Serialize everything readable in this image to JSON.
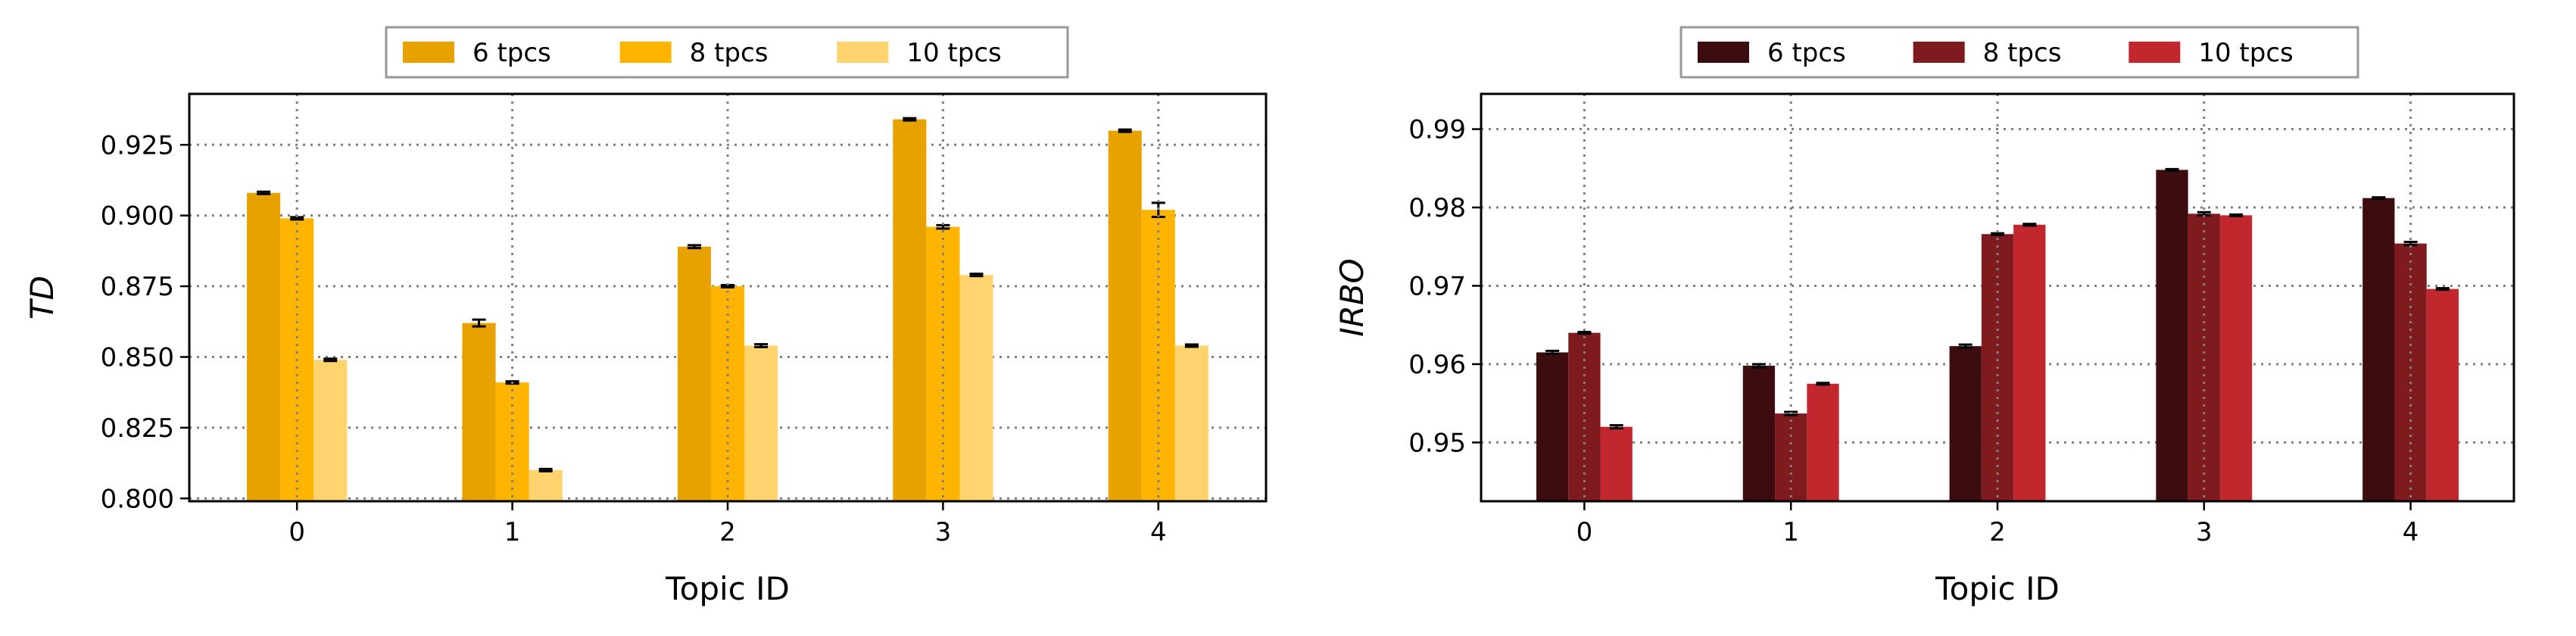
{
  "chart_data": [
    {
      "type": "bar",
      "xlabel": "Topic ID",
      "ylabel": "TD",
      "categories": [
        "0",
        "1",
        "2",
        "3",
        "4"
      ],
      "ylim": [
        0.799,
        0.943
      ],
      "yticks": [
        "0.800",
        "0.825",
        "0.850",
        "0.875",
        "0.900",
        "0.925"
      ],
      "grid": true,
      "legend_position": "top-center",
      "error_bars": true,
      "series": [
        {
          "name": "6 tpcs",
          "color": "#E8A200",
          "values": [
            0.908,
            0.862,
            0.889,
            0.934,
            0.93
          ],
          "errors": [
            0.0004,
            0.0012,
            0.0005,
            0.0004,
            0.0004
          ]
        },
        {
          "name": "8 tpcs",
          "color": "#FFB400",
          "values": [
            0.899,
            0.841,
            0.875,
            0.896,
            0.902
          ],
          "errors": [
            0.0004,
            0.0004,
            0.0004,
            0.0006,
            0.0025
          ]
        },
        {
          "name": "10 tpcs",
          "color": "#FFD36E",
          "values": [
            0.849,
            0.81,
            0.854,
            0.879,
            0.854
          ],
          "errors": [
            0.0004,
            0.0004,
            0.0005,
            0.0004,
            0.0004
          ]
        }
      ]
    },
    {
      "type": "bar",
      "xlabel": "Topic ID",
      "ylabel": "IRBO",
      "categories": [
        "0",
        "1",
        "2",
        "3",
        "4"
      ],
      "ylim": [
        0.9425,
        0.9945
      ],
      "yticks": [
        "0.95",
        "0.96",
        "0.97",
        "0.98",
        "0.99"
      ],
      "grid": true,
      "legend_position": "top-center",
      "error_bars": true,
      "series": [
        {
          "name": "6 tpcs",
          "color": "#3D0C0E",
          "values": [
            0.9615,
            0.9598,
            0.9623,
            0.9848,
            0.9812
          ],
          "errors": [
            0.0002,
            0.0002,
            0.0002,
            0.0001,
            0.0001
          ]
        },
        {
          "name": "8 tpcs",
          "color": "#7F1A1E",
          "values": [
            0.964,
            0.9537,
            0.9766,
            0.9792,
            0.9754
          ],
          "errors": [
            0.0001,
            0.0002,
            0.0001,
            0.0002,
            0.0002
          ]
        },
        {
          "name": "10 tpcs",
          "color": "#C1272D",
          "values": [
            0.952,
            0.9575,
            0.9778,
            0.979,
            0.9696
          ],
          "errors": [
            0.0002,
            0.0001,
            0.0001,
            0.0001,
            0.0001
          ]
        }
      ]
    }
  ]
}
